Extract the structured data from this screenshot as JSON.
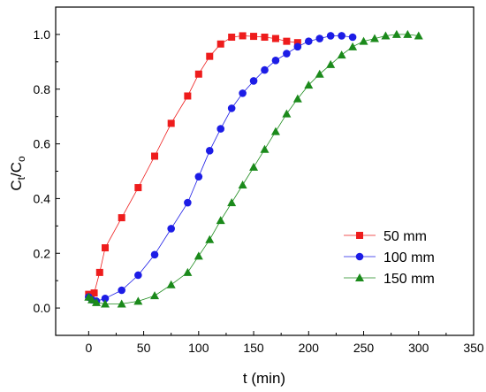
{
  "chart_data": {
    "type": "line",
    "title": "",
    "xlabel": "t (min)",
    "ylabel_main": "C",
    "ylabel_sub1": "t",
    "ylabel_mid": "/C",
    "ylabel_sub2": "o",
    "xlim": [
      -30,
      350
    ],
    "ylim": [
      -0.1,
      1.1
    ],
    "xticks": [
      0,
      50,
      100,
      150,
      200,
      250,
      300,
      350
    ],
    "yticks": [
      0.0,
      0.2,
      0.4,
      0.6,
      0.8,
      1.0
    ],
    "xtick_labels": [
      "0",
      "50",
      "100",
      "150",
      "200",
      "250",
      "300",
      "350"
    ],
    "ytick_labels": [
      "0.0",
      "0.2",
      "0.4",
      "0.6",
      "0.8",
      "1.0"
    ],
    "grid": false,
    "legend_position": "lower-right",
    "series": [
      {
        "name": "50 mm",
        "color": "#ee1c1c",
        "marker": "square",
        "x": [
          0,
          2,
          5,
          10,
          15,
          30,
          45,
          60,
          75,
          90,
          100,
          110,
          120,
          130,
          140,
          150,
          160,
          170,
          180,
          190
        ],
        "y": [
          0.05,
          0.04,
          0.055,
          0.13,
          0.22,
          0.33,
          0.44,
          0.555,
          0.675,
          0.775,
          0.855,
          0.92,
          0.965,
          0.99,
          0.995,
          0.993,
          0.99,
          0.985,
          0.975,
          0.97
        ]
      },
      {
        "name": "100 mm",
        "color": "#1c1ce6",
        "marker": "circle",
        "x": [
          0,
          3,
          7,
          15,
          30,
          45,
          60,
          75,
          90,
          100,
          110,
          120,
          130,
          140,
          150,
          160,
          170,
          180,
          190,
          200,
          210,
          220,
          230,
          240
        ],
        "y": [
          0.04,
          0.03,
          0.025,
          0.035,
          0.065,
          0.12,
          0.195,
          0.29,
          0.385,
          0.48,
          0.575,
          0.655,
          0.73,
          0.785,
          0.83,
          0.87,
          0.905,
          0.93,
          0.955,
          0.975,
          0.985,
          0.995,
          0.995,
          0.99
        ]
      },
      {
        "name": "150 mm",
        "color": "#1b8a1b",
        "marker": "triangle",
        "x": [
          0,
          3,
          7,
          15,
          30,
          45,
          60,
          75,
          90,
          100,
          110,
          120,
          130,
          140,
          150,
          160,
          170,
          180,
          190,
          200,
          210,
          220,
          230,
          240,
          250,
          260,
          270,
          280,
          290,
          300
        ],
        "y": [
          0.04,
          0.03,
          0.02,
          0.015,
          0.015,
          0.025,
          0.045,
          0.085,
          0.13,
          0.19,
          0.25,
          0.32,
          0.385,
          0.45,
          0.515,
          0.58,
          0.645,
          0.71,
          0.765,
          0.815,
          0.855,
          0.89,
          0.925,
          0.955,
          0.975,
          0.985,
          0.995,
          1.0,
          1.0,
          0.995
        ]
      }
    ]
  }
}
